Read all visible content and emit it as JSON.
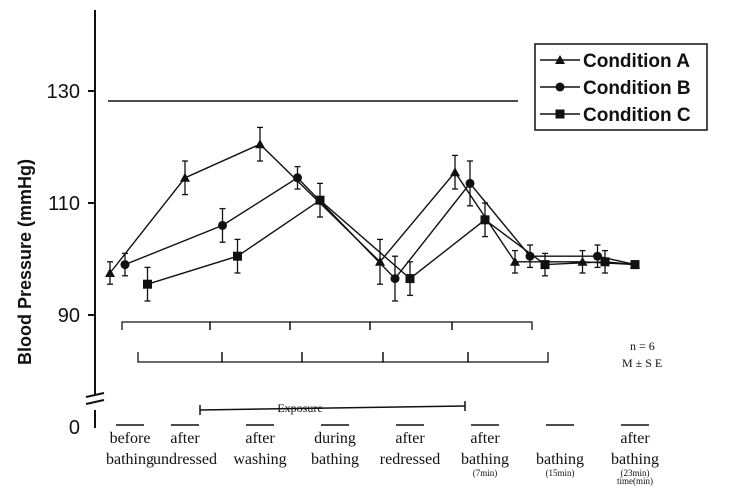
{
  "chart_data": {
    "type": "line",
    "ylabel": "Blood Pressure (mmHg)",
    "y_ticks": [
      "0",
      "90",
      "110",
      "130"
    ],
    "ylim": [
      0,
      130
    ],
    "y_axis_break": true,
    "x_categories": [
      {
        "line1": "before",
        "line2": "bathing",
        "sub": ""
      },
      {
        "line1": "after",
        "line2": "undressed",
        "sub": ""
      },
      {
        "line1": "after",
        "line2": "washing",
        "sub": ""
      },
      {
        "line1": "during",
        "line2": "bathing",
        "sub": ""
      },
      {
        "line1": "after",
        "line2": "redressed",
        "sub": ""
      },
      {
        "line1": "after",
        "line2": "bathing",
        "sub": "(7min)"
      },
      {
        "line1": "",
        "line2": "bathing",
        "sub": "(15min)"
      },
      {
        "line1": "after",
        "line2": "bathing",
        "sub": "(23min)"
      }
    ],
    "x_footer": "time(min)",
    "exposure_label": "Exposure",
    "series": [
      {
        "name": "Condition A",
        "marker": "triangle",
        "x": [
          0,
          1,
          2,
          3.6,
          4.6,
          5.4,
          6.3,
          7.0
        ],
        "y": [
          97.5,
          114.5,
          120.5,
          99.5,
          115.5,
          99.5,
          99.5,
          99.0
        ],
        "err": [
          2,
          3,
          3,
          4,
          3,
          2,
          2,
          0
        ]
      },
      {
        "name": "Condition B",
        "marker": "circle",
        "x": [
          0.2,
          1.5,
          2.5,
          3.8,
          4.8,
          5.6,
          6.5,
          7.0
        ],
        "y": [
          99.0,
          106.0,
          114.5,
          96.5,
          113.5,
          100.5,
          100.5,
          99.0
        ],
        "err": [
          2,
          3,
          2,
          4,
          4,
          2,
          2,
          0
        ]
      },
      {
        "name": "Condition C",
        "marker": "square",
        "x": [
          0.5,
          1.7,
          2.8,
          4.0,
          5.0,
          5.8,
          6.6,
          7.0
        ],
        "y": [
          95.5,
          100.5,
          110.5,
          96.5,
          107.0,
          99.0,
          99.5,
          99.0
        ],
        "err": [
          3,
          3,
          3,
          3,
          3,
          2,
          2,
          0
        ]
      }
    ],
    "annotations": [
      "n = 6",
      "M ± S E"
    ],
    "legend_position": "top-right",
    "grid": false
  }
}
